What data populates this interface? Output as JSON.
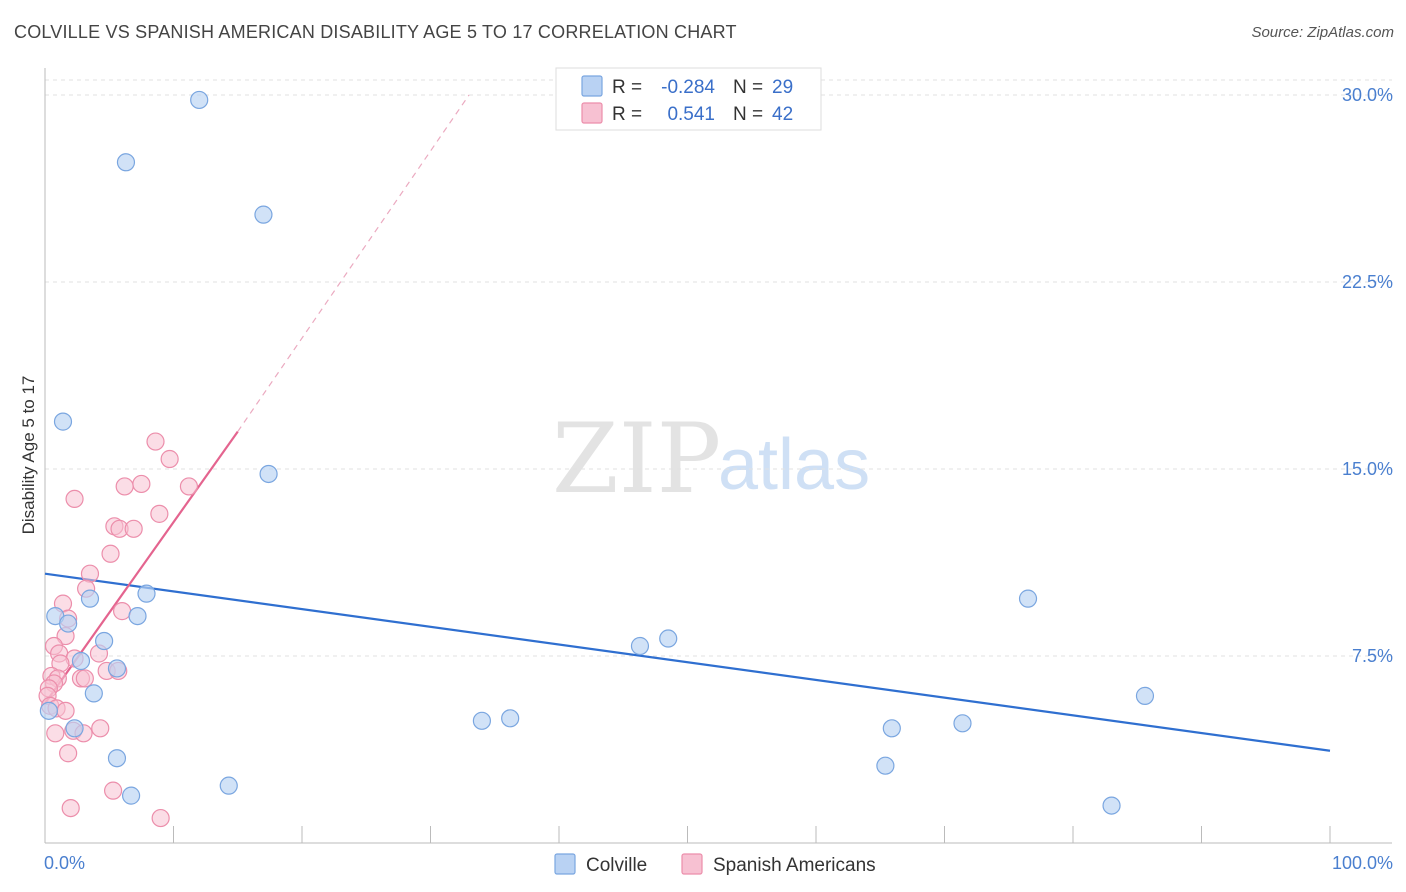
{
  "title": "COLVILLE VS SPANISH AMERICAN DISABILITY AGE 5 TO 17 CORRELATION CHART",
  "source": "Source: ZipAtlas.com",
  "watermark": {
    "zip": "ZIP",
    "atlas": "atlas"
  },
  "colors": {
    "colville_fill": "#b9d2f3",
    "colville_stroke": "#7aa6e0",
    "colville_line": "#2f6fd0",
    "spanish_fill": "#f7c1d2",
    "spanish_stroke": "#ec8eab",
    "spanish_line": "#e4648f",
    "tick": "#4a7fcf",
    "grid": "#e2e2e2"
  },
  "legend": {
    "rows": [
      {
        "r_label": "R =",
        "r_value": "-0.284",
        "n_label": "N =",
        "n_value": "29"
      },
      {
        "r_label": "R =",
        "r_value": "0.541",
        "n_label": "N =",
        "n_value": "42"
      }
    ]
  },
  "chart_data": {
    "type": "scatter",
    "title": "COLVILLE VS SPANISH AMERICAN DISABILITY AGE 5 TO 17 CORRELATION CHART",
    "xlabel": "",
    "ylabel": "Disability Age 5 to 17",
    "xlim": [
      0,
      100
    ],
    "ylim": [
      0,
      30.6
    ],
    "x_tick_labels": [
      "0.0%",
      "100.0%"
    ],
    "y_ticks": [
      7.5,
      15.0,
      22.5,
      30.0
    ],
    "y_tick_labels": [
      "7.5%",
      "15.0%",
      "22.5%",
      "30.0%"
    ],
    "series": [
      {
        "name": "Colville",
        "r": -0.284,
        "n": 29,
        "trend": {
          "x0": 0,
          "y0": 10.8,
          "x1": 100,
          "y1": 3.7
        },
        "points": [
          [
            12,
            29.8
          ],
          [
            6.3,
            27.3
          ],
          [
            17,
            25.2
          ],
          [
            1.4,
            16.9
          ],
          [
            17.4,
            14.8
          ],
          [
            0.8,
            9.1
          ],
          [
            1.8,
            8.8
          ],
          [
            3.5,
            9.8
          ],
          [
            7.9,
            10.0
          ],
          [
            7.2,
            9.1
          ],
          [
            4.6,
            8.1
          ],
          [
            2.8,
            7.3
          ],
          [
            5.6,
            7.0
          ],
          [
            3.8,
            6.0
          ],
          [
            0.3,
            5.3
          ],
          [
            2.3,
            4.6
          ],
          [
            5.6,
            3.4
          ],
          [
            6.7,
            1.9
          ],
          [
            14.3,
            2.3
          ],
          [
            34,
            4.9
          ],
          [
            36.2,
            5.0
          ],
          [
            46.3,
            7.9
          ],
          [
            48.5,
            8.2
          ],
          [
            65.4,
            3.1
          ],
          [
            65.9,
            4.6
          ],
          [
            71.4,
            4.8
          ],
          [
            76.5,
            9.8
          ],
          [
            85.6,
            5.9
          ],
          [
            83,
            1.5
          ]
        ]
      },
      {
        "name": "Spanish Americans",
        "r": 0.541,
        "n": 42,
        "trend": {
          "x0": 0,
          "y0": 5.6,
          "x1": 15,
          "y1": 16.5
        },
        "trend_ext": {
          "x0": 15,
          "y0": 16.5,
          "x1": 33,
          "y1": 30.0
        },
        "points": [
          [
            8.6,
            16.1
          ],
          [
            9.7,
            15.4
          ],
          [
            7.5,
            14.4
          ],
          [
            6.2,
            14.3
          ],
          [
            11.2,
            14.3
          ],
          [
            2.3,
            13.8
          ],
          [
            8.9,
            13.2
          ],
          [
            5.4,
            12.7
          ],
          [
            5.8,
            12.6
          ],
          [
            6.9,
            12.6
          ],
          [
            5.1,
            11.6
          ],
          [
            3.5,
            10.8
          ],
          [
            3.2,
            10.2
          ],
          [
            1.4,
            9.6
          ],
          [
            1.8,
            9.0
          ],
          [
            6.0,
            9.3
          ],
          [
            1.6,
            8.3
          ],
          [
            0.7,
            7.9
          ],
          [
            1.1,
            7.6
          ],
          [
            4.2,
            7.6
          ],
          [
            2.3,
            7.4
          ],
          [
            1.2,
            7.2
          ],
          [
            4.8,
            6.9
          ],
          [
            5.7,
            6.9
          ],
          [
            0.5,
            6.7
          ],
          [
            1.0,
            6.6
          ],
          [
            2.8,
            6.6
          ],
          [
            3.1,
            6.6
          ],
          [
            0.7,
            6.4
          ],
          [
            0.3,
            6.2
          ],
          [
            0.2,
            5.9
          ],
          [
            0.4,
            5.5
          ],
          [
            0.9,
            5.4
          ],
          [
            1.6,
            5.3
          ],
          [
            4.3,
            4.6
          ],
          [
            2.2,
            4.5
          ],
          [
            3.0,
            4.4
          ],
          [
            0.8,
            4.4
          ],
          [
            1.8,
            3.6
          ],
          [
            5.3,
            2.1
          ],
          [
            2.0,
            1.4
          ],
          [
            9.0,
            1.0
          ]
        ]
      }
    ]
  }
}
